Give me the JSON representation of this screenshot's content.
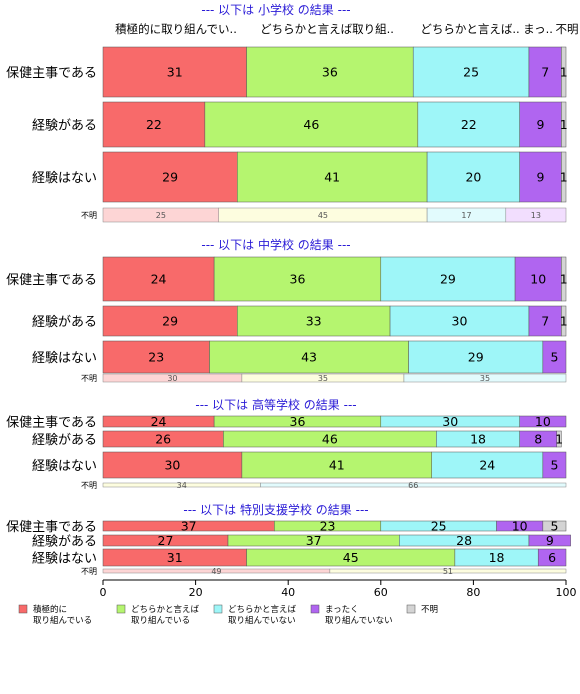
{
  "chart_data": {
    "type": "bar",
    "orientation": "horizontal",
    "stacked": true,
    "xlim": [
      0,
      100
    ],
    "xticks": [
      0,
      20,
      40,
      60,
      80,
      100
    ],
    "column_headers": [
      "積極的に取り組んでい..",
      "どちらかと言えば取り組..",
      "どちらかと言えば..",
      "まっ..",
      "不明"
    ],
    "legend": [
      {
        "name": "積極的に\n取り組んでいる",
        "color": "#f86a6a"
      },
      {
        "name": "どちらかと言えば\n取り組んでいる",
        "color": "#b5f56f"
      },
      {
        "name": "どちらかと言えば\n取り組んでいない",
        "color": "#9ef6f8"
      },
      {
        "name": "まったく\n取り組んでいない",
        "color": "#b065f0"
      },
      {
        "name": "不明",
        "color": "#d4d4d4"
      }
    ],
    "legend_placement": "bottom",
    "sections": [
      {
        "title": "--- 以下は 小学校 の結果 ---",
        "rows": [
          {
            "label": "保健主事である",
            "values": [
              31,
              36,
              25,
              7,
              1
            ]
          },
          {
            "label": "経験がある",
            "values": [
              22,
              46,
              22,
              9,
              1
            ]
          },
          {
            "label": "経験はない",
            "values": [
              29,
              41,
              20,
              9,
              1
            ]
          }
        ],
        "unknown": {
          "label": "不明",
          "values": [
            25,
            45,
            17,
            13,
            0
          ]
        }
      },
      {
        "title": "--- 以下は 中学校 の結果 ---",
        "rows": [
          {
            "label": "保健主事である",
            "values": [
              24,
              36,
              29,
              10,
              1
            ]
          },
          {
            "label": "経験がある",
            "values": [
              29,
              33,
              30,
              7,
              1
            ]
          },
          {
            "label": "経験はない",
            "values": [
              23,
              43,
              29,
              5,
              0
            ]
          }
        ],
        "unknown": {
          "label": "不明",
          "values": [
            30,
            35,
            35,
            0,
            0
          ]
        }
      },
      {
        "title": "--- 以下は 高等学校 の結果 ---",
        "rows": [
          {
            "label": "保健主事である",
            "values": [
              24,
              36,
              30,
              10,
              0
            ]
          },
          {
            "label": "経験がある",
            "values": [
              26,
              46,
              18,
              8,
              1
            ]
          },
          {
            "label": "経験はない",
            "values": [
              30,
              41,
              24,
              5,
              0
            ]
          }
        ],
        "unknown": {
          "label": "不明",
          "values": [
            0,
            34,
            66,
            0,
            0
          ]
        }
      },
      {
        "title": "--- 以下は 特別支援学校 の結果 ---",
        "rows": [
          {
            "label": "保健主事である",
            "values": [
              37,
              23,
              25,
              10,
              5
            ]
          },
          {
            "label": "経験がある",
            "values": [
              27,
              37,
              28,
              9,
              0
            ]
          },
          {
            "label": "経験はない",
            "values": [
              31,
              45,
              18,
              6,
              0
            ]
          }
        ],
        "unknown": {
          "label": "不明",
          "values": [
            49,
            51,
            0,
            0,
            0
          ]
        }
      }
    ]
  }
}
